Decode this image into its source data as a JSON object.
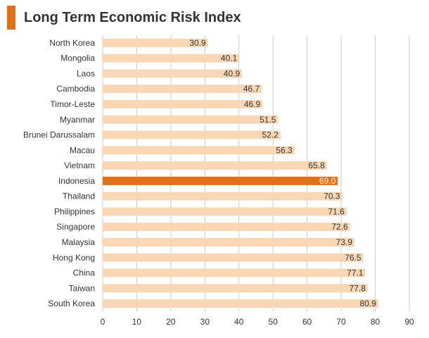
{
  "title": "Long Term Economic Risk Index",
  "colors": {
    "accent": "#e07019",
    "bar": "#fad7b4",
    "highlight": "#e07019",
    "grid": "#cccccc",
    "text": "#333333"
  },
  "chart_data": {
    "type": "bar",
    "orientation": "horizontal",
    "title": "Long Term Economic Risk Index",
    "xlabel": "",
    "ylabel": "",
    "xlim": [
      0,
      90
    ],
    "ticks": [
      "0",
      "10",
      "20",
      "30",
      "40",
      "50",
      "60",
      "70",
      "80",
      "90"
    ],
    "tick_values": [
      0,
      10,
      20,
      30,
      40,
      50,
      60,
      70,
      80,
      90
    ],
    "grid": true,
    "highlight": "Indonesia",
    "categories": [
      "North Korea",
      "Mongolia",
      "Laos",
      "Cambodia",
      "Timor-Leste",
      "Myanmar",
      "Brunei Darussalam",
      "Macau",
      "Vietnam",
      "Indonesia",
      "Thailand",
      "Philippines",
      "Singapore",
      "Malaysia",
      "Hong Kong",
      "China",
      "Taiwan",
      "South Korea"
    ],
    "values": [
      30.9,
      40.1,
      40.9,
      46.7,
      46.9,
      51.5,
      52.2,
      56.3,
      65.8,
      69.0,
      70.3,
      71.6,
      72.6,
      73.9,
      76.5,
      77.1,
      77.8,
      80.9
    ],
    "labels": [
      "30.9",
      "40.1",
      "40.9",
      "46.7",
      "46.9",
      "51.5",
      "52.2",
      "56.3",
      "65.8",
      "69.0",
      "70.3",
      "71.6",
      "72.6",
      "73.9",
      "76.5",
      "77.1",
      "77.8",
      "80.9"
    ]
  }
}
